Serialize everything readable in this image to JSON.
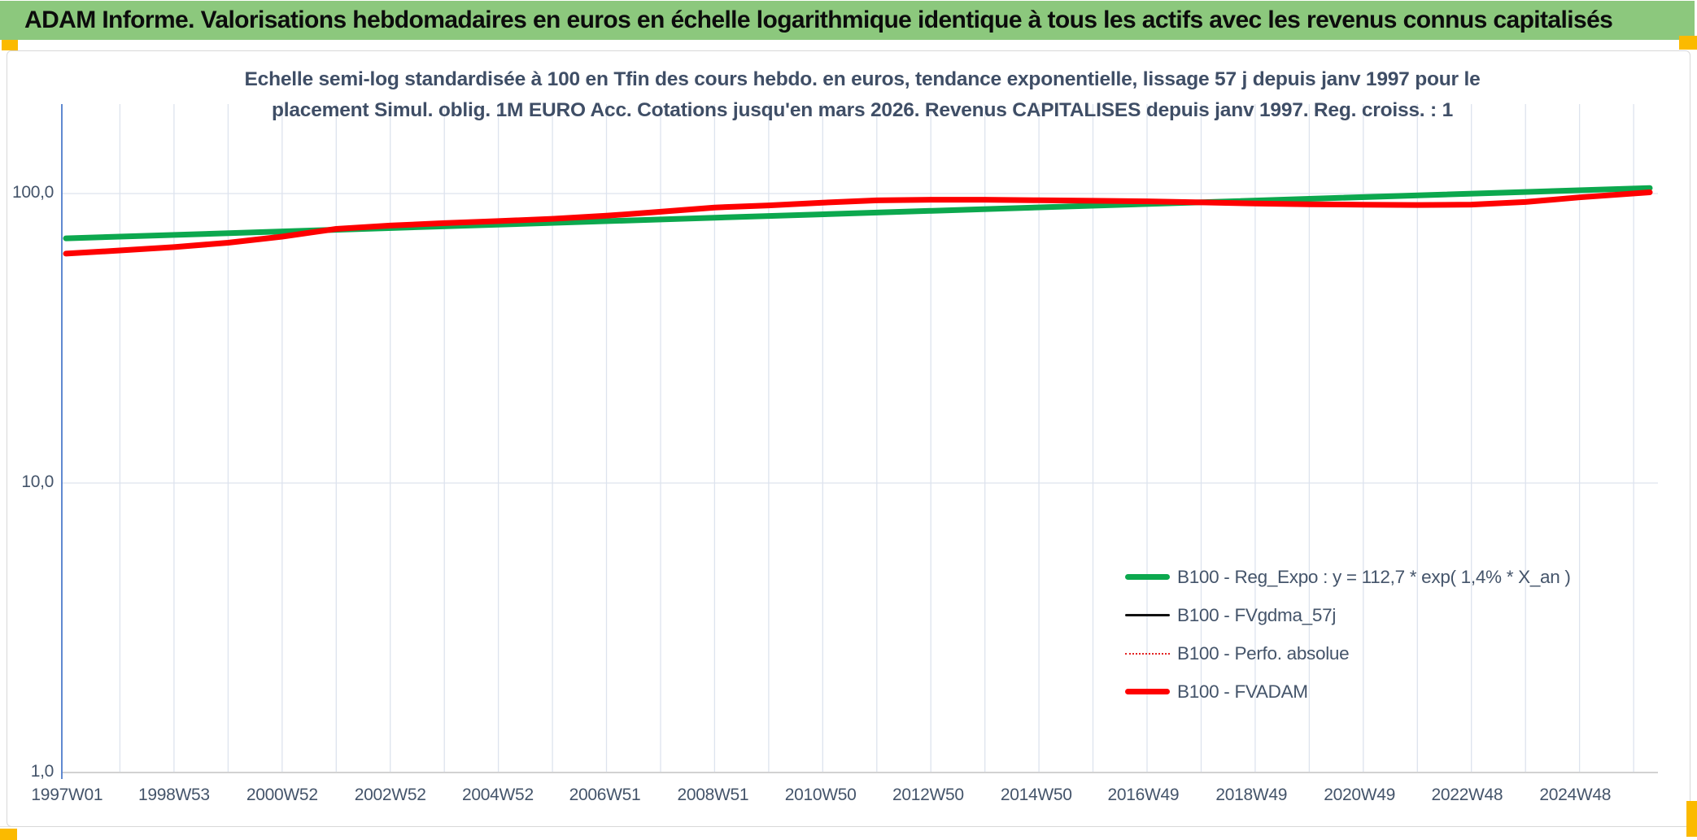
{
  "header": {
    "title": "ADAM Informe. Valorisations hebdomadaires en euros en échelle logarithmique identique à tous les actifs avec les revenus connus capitalisés"
  },
  "colors": {
    "header_bg": "#8cc87d",
    "accent_gold": "#fbba00",
    "chart_text": "#44546a",
    "gridline": "#dde3ee",
    "y_axis_line": "#4f7ccb",
    "x_axis_line": "#d2d2d2",
    "series_green": "#0ca84e",
    "series_black": "#111111",
    "series_red_dotted": "#e32222",
    "series_red": "#fe0000"
  },
  "chart_data": {
    "type": "line",
    "title_line1": "Echelle semi-log standardisée à 100 en Tfin des cours hebdo. en euros, tendance exponentielle, lissage 57 j depuis janv 1997 pour le",
    "title_line2": "placement Simul. oblig. 1M EURO Acc. Cotations jusqu'en mars 2026. Revenus CAPITALISES depuis janv 1997. Reg. croiss. : 1",
    "y_scale": "log10",
    "ylim": [
      1,
      210
    ],
    "y_ticks": [
      {
        "label": "100,0",
        "value": 100
      },
      {
        "label": "10,0",
        "value": 10
      },
      {
        "label": "1,0",
        "value": 1
      }
    ],
    "x_range_years": [
      1997.0,
      2026.3
    ],
    "x_gridline_every_years": 1,
    "x_ticks": [
      {
        "label": "1997W01",
        "year": 1997.02
      },
      {
        "label": "1998W53",
        "year": 1999.0
      },
      {
        "label": "2000W52",
        "year": 2001.0
      },
      {
        "label": "2002W52",
        "year": 2003.0
      },
      {
        "label": "2004W52",
        "year": 2004.99
      },
      {
        "label": "2006W51",
        "year": 2006.97
      },
      {
        "label": "2008W51",
        "year": 2008.97
      },
      {
        "label": "2010W50",
        "year": 2010.96
      },
      {
        "label": "2012W50",
        "year": 2012.95
      },
      {
        "label": "2014W50",
        "year": 2014.95
      },
      {
        "label": "2016W49",
        "year": 2016.93
      },
      {
        "label": "2018W49",
        "year": 2018.93
      },
      {
        "label": "2020W49",
        "year": 2020.93
      },
      {
        "label": "2022W48",
        "year": 2022.92
      },
      {
        "label": "2024W48",
        "year": 2024.92
      }
    ],
    "legend_position": "inside-lower-right",
    "series": [
      {
        "name": "B100 - Reg_Expo : y = 112,7 * exp( 1,4% *  X_an )",
        "color_key": "series_green",
        "style": "solid",
        "stroke_width": 7,
        "points": [
          [
            1997.0,
            70.0
          ],
          [
            2026.3,
            104.5
          ]
        ]
      },
      {
        "name": "B100 - FVgdma_57j",
        "color_key": "series_black",
        "style": "solid",
        "stroke_width": 3,
        "coincident_with": "B100 - FVADAM",
        "points": [
          [
            1997.0,
            62.0
          ],
          [
            1998,
            63.6
          ],
          [
            1999,
            65.3
          ],
          [
            2000,
            67.6
          ],
          [
            2001,
            71.0
          ],
          [
            2002,
            75.5
          ],
          [
            2003,
            77.5
          ],
          [
            2004,
            79.0
          ],
          [
            2005,
            80.3
          ],
          [
            2006,
            81.8
          ],
          [
            2007,
            83.8
          ],
          [
            2008,
            86.5
          ],
          [
            2009,
            89.5
          ],
          [
            2010,
            91.0
          ],
          [
            2011,
            93.0
          ],
          [
            2012,
            94.7
          ],
          [
            2013,
            95.2
          ],
          [
            2014,
            95.2
          ],
          [
            2015,
            94.8
          ],
          [
            2016,
            94.4
          ],
          [
            2017,
            94.0
          ],
          [
            2018,
            93.2
          ],
          [
            2019,
            92.4
          ],
          [
            2020,
            91.8
          ],
          [
            2021,
            91.5
          ],
          [
            2022,
            91.3
          ],
          [
            2023,
            91.6
          ],
          [
            2024,
            93.5
          ],
          [
            2025,
            97.0
          ],
          [
            2026.3,
            101.0
          ]
        ]
      },
      {
        "name": "B100 - Perfo. absolue",
        "color_key": "series_red_dotted",
        "style": "dotted",
        "stroke_width": 2.5,
        "coincident_with": "B100 - FVADAM",
        "points": [
          [
            1997.0,
            62.0
          ],
          [
            1998,
            63.6
          ],
          [
            1999,
            65.3
          ],
          [
            2000,
            67.6
          ],
          [
            2001,
            71.0
          ],
          [
            2002,
            75.5
          ],
          [
            2003,
            77.5
          ],
          [
            2004,
            79.0
          ],
          [
            2005,
            80.3
          ],
          [
            2006,
            81.8
          ],
          [
            2007,
            83.8
          ],
          [
            2008,
            86.5
          ],
          [
            2009,
            89.5
          ],
          [
            2010,
            91.0
          ],
          [
            2011,
            93.0
          ],
          [
            2012,
            94.7
          ],
          [
            2013,
            95.2
          ],
          [
            2014,
            95.2
          ],
          [
            2015,
            94.8
          ],
          [
            2016,
            94.4
          ],
          [
            2017,
            94.0
          ],
          [
            2018,
            93.2
          ],
          [
            2019,
            92.4
          ],
          [
            2020,
            91.8
          ],
          [
            2021,
            91.5
          ],
          [
            2022,
            91.3
          ],
          [
            2023,
            91.6
          ],
          [
            2024,
            93.5
          ],
          [
            2025,
            97.0
          ],
          [
            2026.3,
            101.0
          ]
        ]
      },
      {
        "name": "B100 - FVADAM",
        "color_key": "series_red",
        "style": "solid",
        "stroke_width": 7,
        "points": [
          [
            1997.0,
            62.0
          ],
          [
            1998,
            63.6
          ],
          [
            1999,
            65.3
          ],
          [
            2000,
            67.6
          ],
          [
            2001,
            71.0
          ],
          [
            2002,
            75.5
          ],
          [
            2003,
            77.5
          ],
          [
            2004,
            79.0
          ],
          [
            2005,
            80.3
          ],
          [
            2006,
            81.8
          ],
          [
            2007,
            83.8
          ],
          [
            2008,
            86.5
          ],
          [
            2009,
            89.5
          ],
          [
            2010,
            91.0
          ],
          [
            2011,
            93.0
          ],
          [
            2012,
            94.7
          ],
          [
            2013,
            95.2
          ],
          [
            2014,
            95.2
          ],
          [
            2015,
            94.8
          ],
          [
            2016,
            94.4
          ],
          [
            2017,
            94.0
          ],
          [
            2018,
            93.2
          ],
          [
            2019,
            92.4
          ],
          [
            2020,
            91.8
          ],
          [
            2021,
            91.5
          ],
          [
            2022,
            91.3
          ],
          [
            2023,
            91.6
          ],
          [
            2024,
            93.5
          ],
          [
            2025,
            97.0
          ],
          [
            2026.3,
            101.0
          ]
        ]
      }
    ]
  }
}
